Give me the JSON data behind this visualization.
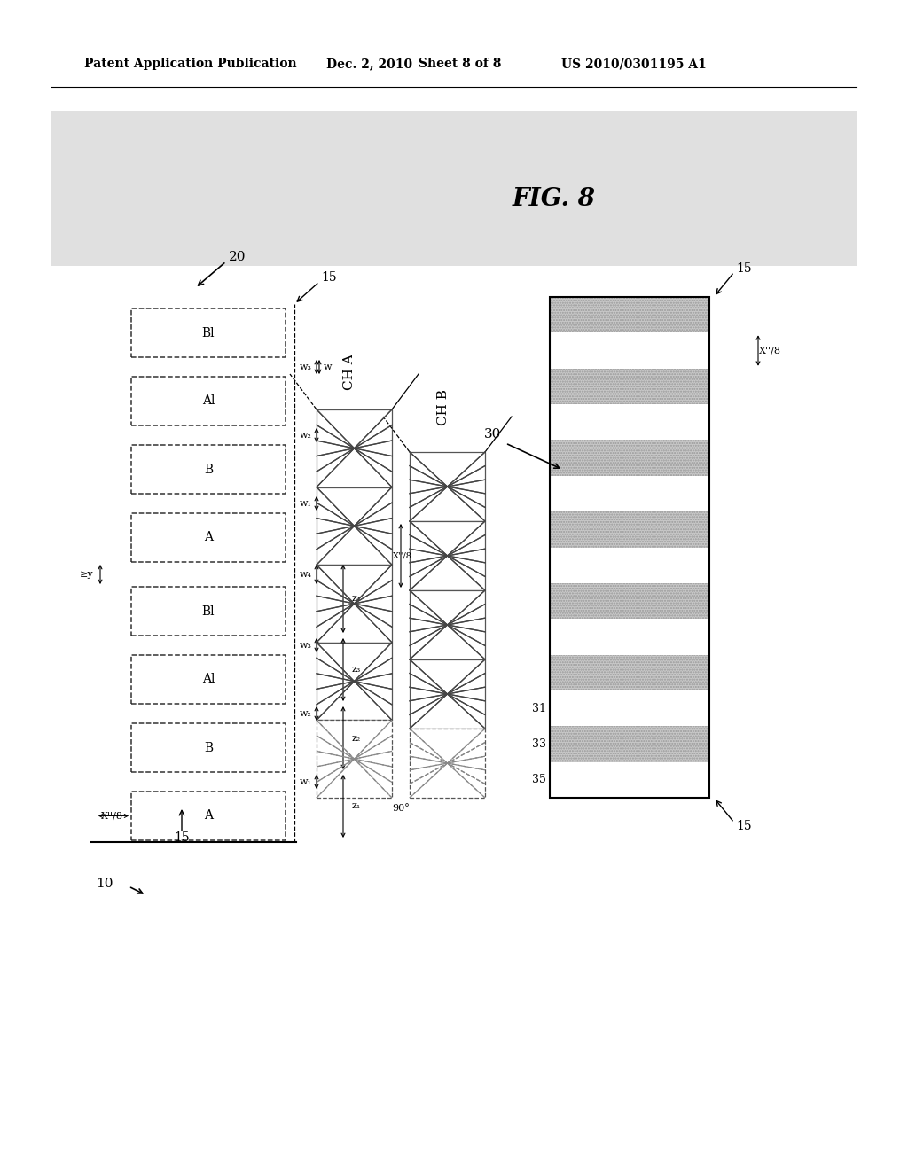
{
  "bg_color": "#ffffff",
  "header_text": "Patent Application Publication",
  "header_date": "Dec. 2, 2010",
  "header_sheet": "Sheet 8 of 8",
  "header_patent": "US 2010/0301195 A1",
  "fig_label": "FIG. 8",
  "stripe_gray": "#c8c8c8",
  "bar_edge": "#333333",
  "gray_bg": "#e0e0e0"
}
